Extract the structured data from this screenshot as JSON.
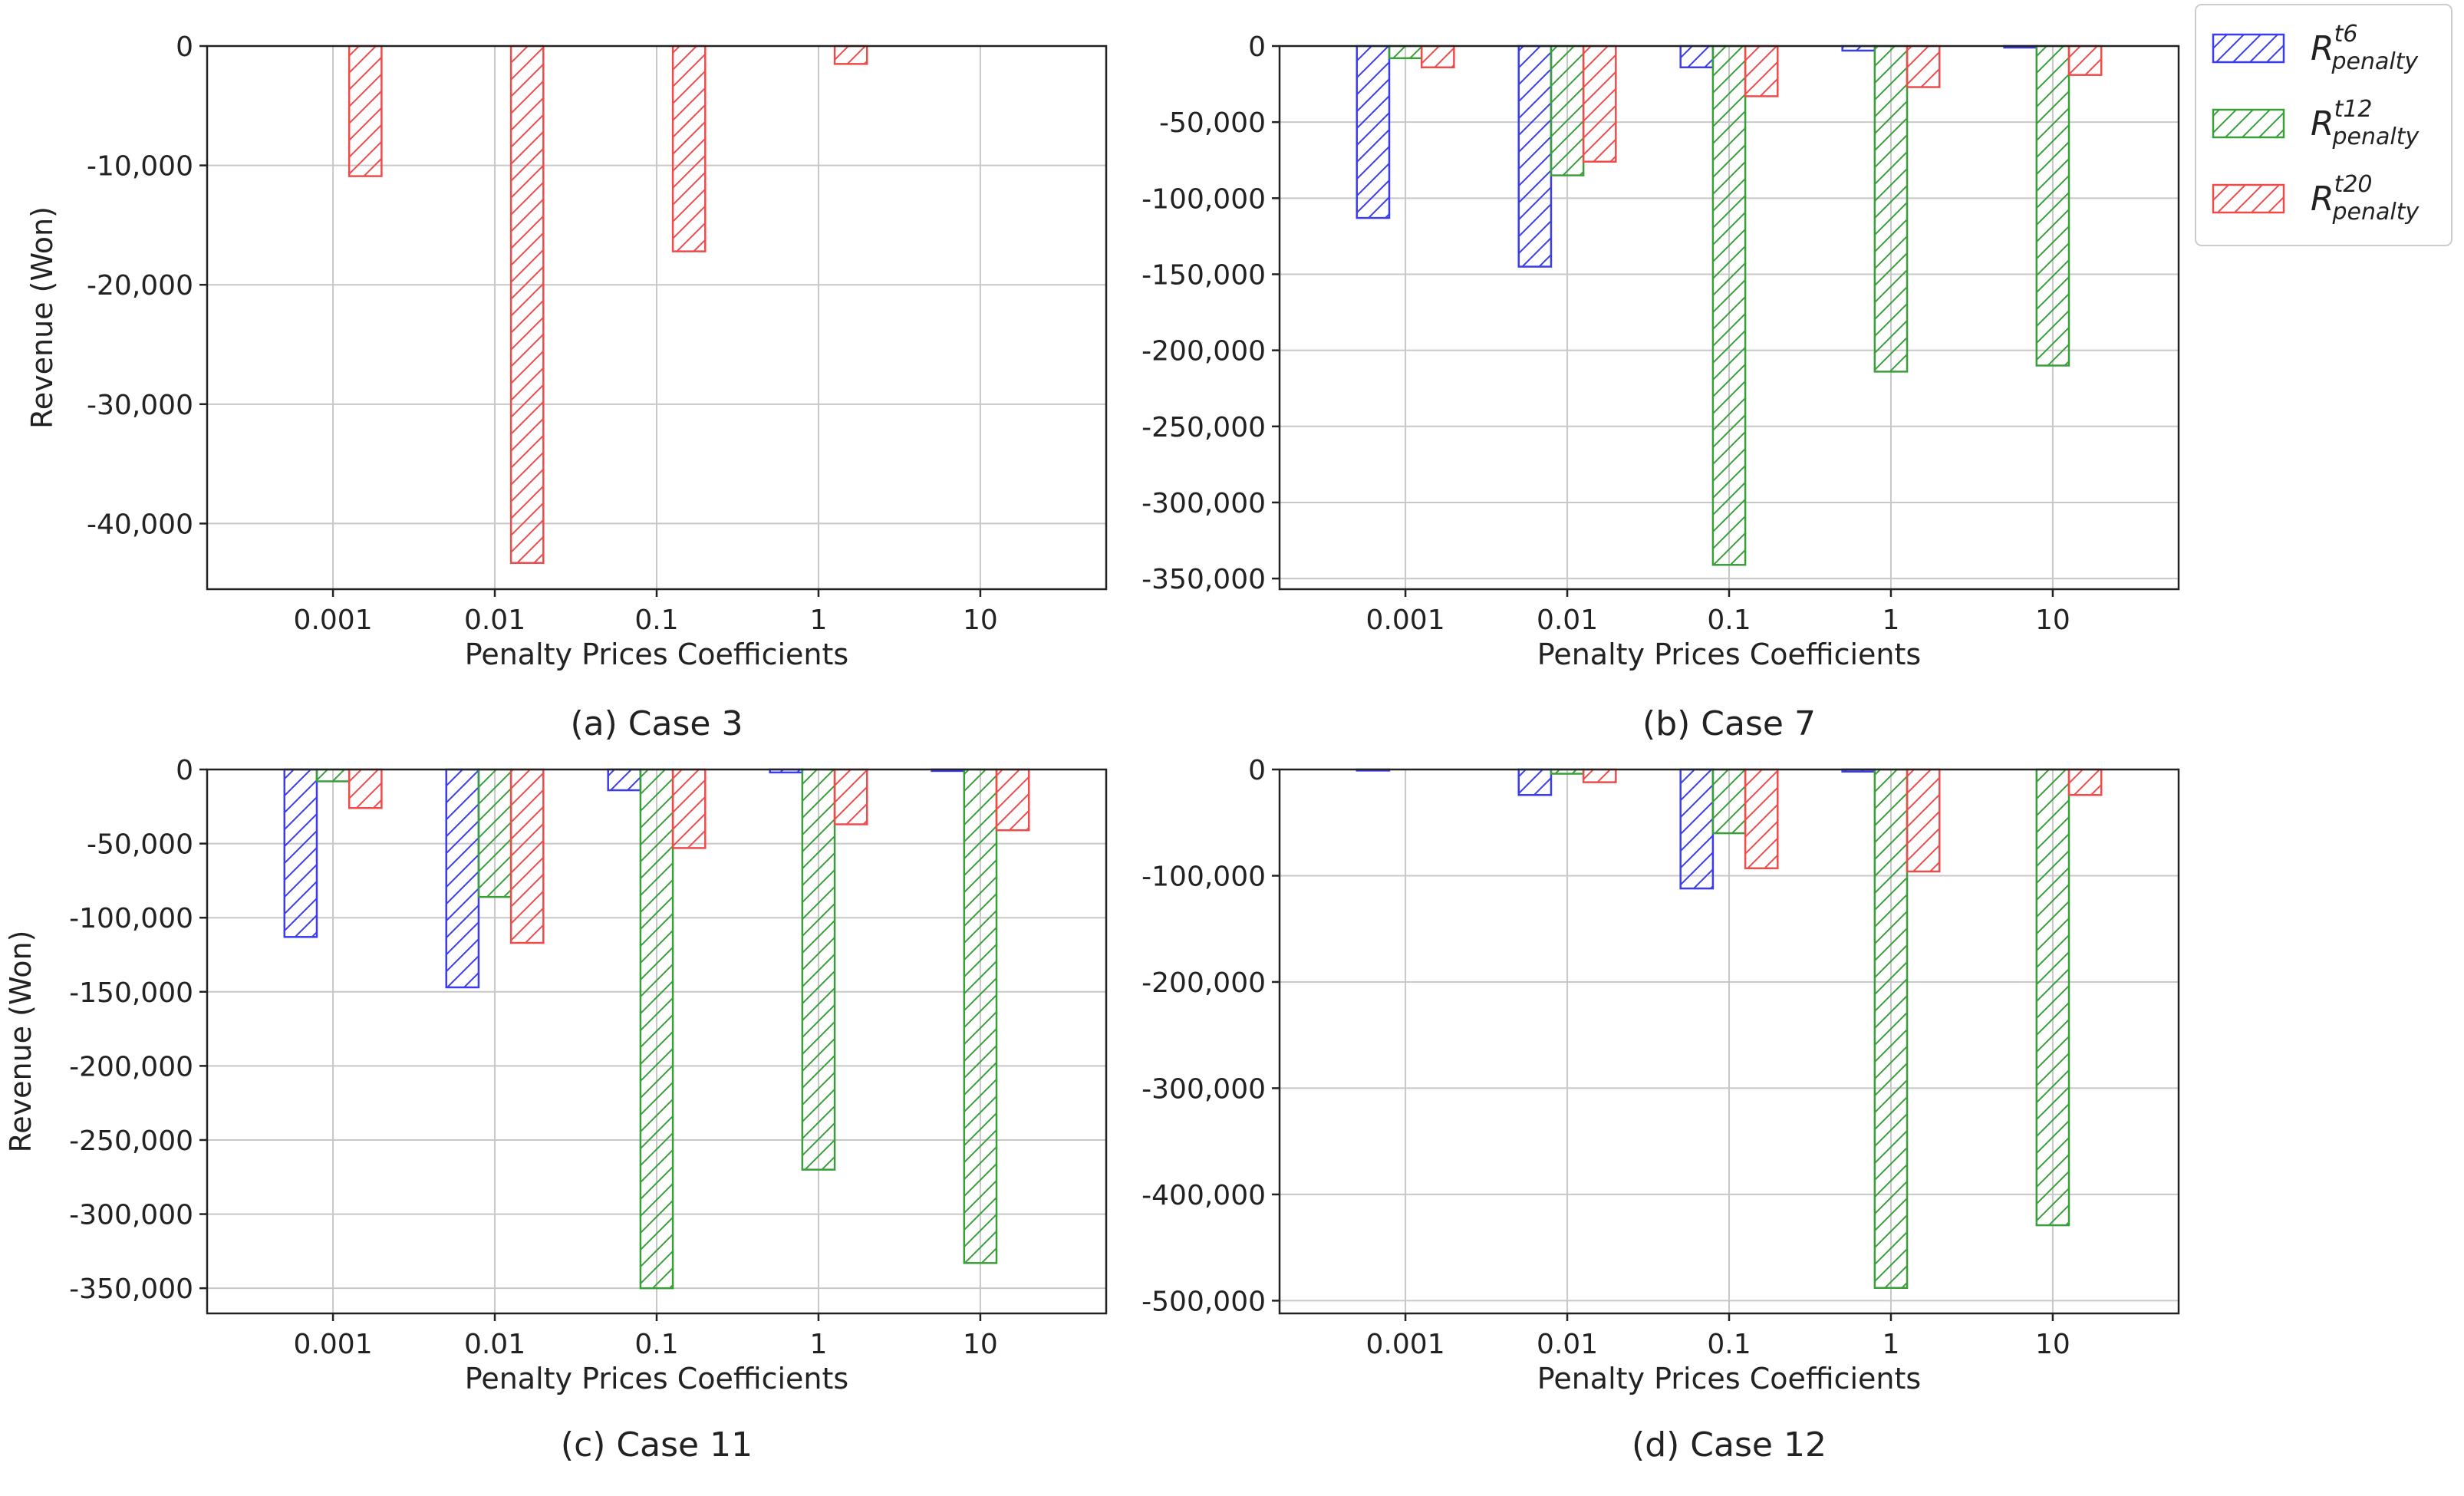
{
  "chart_data": [
    {
      "type": "bar",
      "caption": "(a) Case 3",
      "xlabel": "Penalty Prices Coefficients",
      "ylabel": "Revenue (Won)",
      "categories": [
        "0.001",
        "0.01",
        "0.1",
        "1",
        "10"
      ],
      "ylim": [
        -45500,
        0
      ],
      "yticks": [
        0,
        -10000,
        -20000,
        -30000,
        -40000
      ],
      "ytick_labels": [
        "0",
        "-10,000",
        "-20,000",
        "-30,000",
        "-40,000"
      ],
      "grid": true,
      "series": [
        {
          "name": "R_penalty^t6",
          "values": [
            0,
            0,
            0,
            0,
            0
          ]
        },
        {
          "name": "R_penalty^t12",
          "values": [
            0,
            0,
            0,
            0,
            0
          ]
        },
        {
          "name": "R_penalty^t20",
          "values": [
            -10900,
            -43300,
            -17200,
            -1500,
            0
          ]
        }
      ]
    },
    {
      "type": "bar",
      "caption": "(b) Case 7",
      "xlabel": "Penalty Prices Coefficients",
      "ylabel": "",
      "categories": [
        "0.001",
        "0.01",
        "0.1",
        "1",
        "10"
      ],
      "ylim": [
        -357000,
        0
      ],
      "yticks": [
        0,
        -50000,
        -100000,
        -150000,
        -200000,
        -250000,
        -300000,
        -350000
      ],
      "ytick_labels": [
        "0",
        "-50,000",
        "-100,000",
        "-150,000",
        "-200,000",
        "-250,000",
        "-300,000",
        "-350,000"
      ],
      "grid": true,
      "series": [
        {
          "name": "R_penalty^t6",
          "values": [
            -113000,
            -145000,
            -14000,
            -3000,
            -1000
          ]
        },
        {
          "name": "R_penalty^t12",
          "values": [
            -8000,
            -85000,
            -341000,
            -214000,
            -210000
          ]
        },
        {
          "name": "R_penalty^t20",
          "values": [
            -14000,
            -76000,
            -33000,
            -27000,
            -19000
          ]
        }
      ]
    },
    {
      "type": "bar",
      "caption": "(c) Case 11",
      "xlabel": "Penalty Prices Coefficients",
      "ylabel": "Revenue (Won)",
      "categories": [
        "0.001",
        "0.01",
        "0.1",
        "1",
        "10"
      ],
      "ylim": [
        -367000,
        0
      ],
      "yticks": [
        0,
        -50000,
        -100000,
        -150000,
        -200000,
        -250000,
        -300000,
        -350000
      ],
      "ytick_labels": [
        "0",
        "-50,000",
        "-100,000",
        "-150,000",
        "-200,000",
        "-250,000",
        "-300,000",
        "-350,000"
      ],
      "grid": true,
      "series": [
        {
          "name": "R_penalty^t6",
          "values": [
            -113000,
            -147000,
            -14000,
            -2000,
            -1000
          ]
        },
        {
          "name": "R_penalty^t12",
          "values": [
            -8000,
            -86000,
            -350000,
            -270000,
            -333000
          ]
        },
        {
          "name": "R_penalty^t20",
          "values": [
            -26000,
            -117000,
            -53000,
            -37000,
            -41000
          ]
        }
      ]
    },
    {
      "type": "bar",
      "caption": "(d) Case 12",
      "xlabel": "Penalty Prices Coefficients",
      "ylabel": "",
      "categories": [
        "0.001",
        "0.01",
        "0.1",
        "1",
        "10"
      ],
      "ylim": [
        -512000,
        0
      ],
      "yticks": [
        0,
        -100000,
        -200000,
        -300000,
        -400000,
        -500000
      ],
      "ytick_labels": [
        "0",
        "-100,000",
        "-200,000",
        "-300,000",
        "-400,000",
        "-500,000"
      ],
      "grid": true,
      "series": [
        {
          "name": "R_penalty^t6",
          "values": [
            -1000,
            -24000,
            -112000,
            -2000,
            0
          ]
        },
        {
          "name": "R_penalty^t12",
          "values": [
            0,
            -4000,
            -60000,
            -488000,
            -429000
          ]
        },
        {
          "name": "R_penalty^t20",
          "values": [
            0,
            -12000,
            -93000,
            -96000,
            -24000
          ]
        }
      ]
    }
  ],
  "legend": {
    "placement": "top-right",
    "entries": [
      {
        "base": "R",
        "sup": "t6",
        "sub": "penalty",
        "color": "#3b3bf0"
      },
      {
        "base": "R",
        "sup": "t12",
        "sub": "penalty",
        "color": "#3a9e3a"
      },
      {
        "base": "R",
        "sup": "t20",
        "sub": "penalty",
        "color": "#f04b4b"
      }
    ]
  },
  "colors": {
    "t6": "#3b3bf0",
    "t12": "#3a9e3a",
    "t20": "#f04b4b"
  }
}
